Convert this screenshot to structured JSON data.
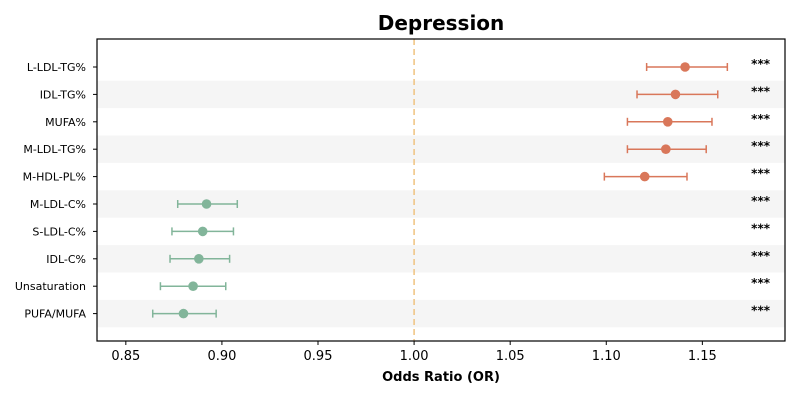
{
  "chart_data": {
    "type": "forest",
    "title": "Depression",
    "xlabel": "Odds Ratio (OR)",
    "xlim": [
      0.835,
      1.193
    ],
    "xticks": [
      0.85,
      0.9,
      0.95,
      1.0,
      1.05,
      1.1,
      1.15
    ],
    "xtick_labels": [
      "0.85",
      "0.90",
      "0.95",
      "1.00",
      "1.05",
      "1.10",
      "1.15"
    ],
    "reference_line": 1.0,
    "reference_color": "#f0c27f",
    "colors": {
      "positive": "#d9775a",
      "negative": "#82b59a",
      "band": "#f5f5f5"
    },
    "items": [
      {
        "label": "L-LDL-TG%",
        "or": 1.141,
        "lower": 1.121,
        "upper": 1.163,
        "sig": "***"
      },
      {
        "label": "IDL-TG%",
        "or": 1.136,
        "lower": 1.116,
        "upper": 1.158,
        "sig": "***"
      },
      {
        "label": "MUFA%",
        "or": 1.132,
        "lower": 1.111,
        "upper": 1.155,
        "sig": "***"
      },
      {
        "label": "M-LDL-TG%",
        "or": 1.131,
        "lower": 1.111,
        "upper": 1.152,
        "sig": "***"
      },
      {
        "label": "M-HDL-PL%",
        "or": 1.12,
        "lower": 1.099,
        "upper": 1.142,
        "sig": "***"
      },
      {
        "label": "M-LDL-C%",
        "or": 0.892,
        "lower": 0.877,
        "upper": 0.908,
        "sig": "***"
      },
      {
        "label": "S-LDL-C%",
        "or": 0.89,
        "lower": 0.874,
        "upper": 0.906,
        "sig": "***"
      },
      {
        "label": "IDL-C%",
        "or": 0.888,
        "lower": 0.873,
        "upper": 0.904,
        "sig": "***"
      },
      {
        "label": "Unsaturation",
        "or": 0.885,
        "lower": 0.868,
        "upper": 0.902,
        "sig": "***"
      },
      {
        "label": "PUFA/MUFA",
        "or": 0.88,
        "lower": 0.864,
        "upper": 0.897,
        "sig": "***"
      }
    ]
  }
}
